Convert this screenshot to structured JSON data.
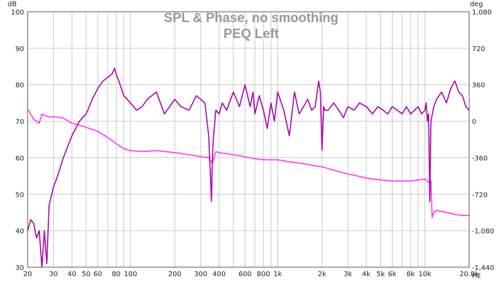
{
  "chart_data": {
    "type": "line",
    "title": "SPL & Phase, no smoothing",
    "subtitle": "PEQ Left",
    "x_scale": "log",
    "xlim": [
      20,
      20000
    ],
    "x_unit": "Hz",
    "ylabel_left": "dB",
    "ylabel_right": "deg",
    "ylim_left": [
      30,
      100
    ],
    "ylim_right": [
      -1440,
      1080
    ],
    "grid": true,
    "x_ticks": [
      {
        "v": 20,
        "label": "20"
      },
      {
        "v": 30,
        "label": "30"
      },
      {
        "v": 40,
        "label": "40"
      },
      {
        "v": 50,
        "label": "50"
      },
      {
        "v": 60,
        "label": "60"
      },
      {
        "v": 80,
        "label": "80"
      },
      {
        "v": 100,
        "label": "100"
      },
      {
        "v": 200,
        "label": "200"
      },
      {
        "v": 300,
        "label": "300"
      },
      {
        "v": 400,
        "label": "400"
      },
      {
        "v": 600,
        "label": "600"
      },
      {
        "v": 800,
        "label": "800"
      },
      {
        "v": 1000,
        "label": "1k"
      },
      {
        "v": 2000,
        "label": "2k"
      },
      {
        "v": 3000,
        "label": "3k"
      },
      {
        "v": 4000,
        "label": "4k"
      },
      {
        "v": 5000,
        "label": "5k"
      },
      {
        "v": 6000,
        "label": "6k"
      },
      {
        "v": 8000,
        "label": "8k"
      },
      {
        "v": 10000,
        "label": "10k"
      },
      {
        "v": 20000,
        "label": "20.0k"
      }
    ],
    "y_left_ticks": [
      "100",
      "90",
      "80",
      "70",
      "60",
      "50",
      "40",
      "30"
    ],
    "y_left_values": [
      100,
      90,
      80,
      70,
      60,
      50,
      40,
      30
    ],
    "y_right_ticks": [
      "1,080",
      "720",
      "360",
      "0",
      "-360",
      "-720",
      "-1,080",
      "-1,440"
    ],
    "y_right_values": [
      1080,
      720,
      360,
      0,
      -360,
      -720,
      -1080,
      -1440
    ],
    "series": [
      {
        "axis": "right",
        "color": "#ff33ff",
        "x": [
          20,
          22,
          24,
          25,
          26,
          28,
          30,
          35,
          40,
          45,
          50,
          60,
          70,
          80,
          90,
          100,
          120,
          150,
          200,
          250,
          300,
          340,
          360,
          380,
          400,
          500,
          600,
          700,
          800,
          1000,
          1200,
          1500,
          1800,
          2000,
          2500,
          3000,
          4000,
          5000,
          6000,
          7000,
          8000,
          9000,
          10000,
          10500,
          11000,
          11200,
          11500,
          12000,
          14000,
          16000,
          18000,
          20000
        ],
        "values": [
          120,
          20,
          -20,
          70,
          60,
          40,
          45,
          30,
          -20,
          -40,
          -60,
          -100,
          -160,
          -220,
          -270,
          -290,
          -300,
          -290,
          -310,
          -330,
          -350,
          -360,
          -420,
          -300,
          -310,
          -330,
          -350,
          -370,
          -380,
          -380,
          -400,
          -420,
          -440,
          -450,
          -490,
          -520,
          -560,
          -580,
          -590,
          -590,
          -590,
          -580,
          -570,
          -600,
          -590,
          -950,
          -900,
          -880,
          -900,
          -920,
          -930,
          -930
        ]
      },
      {
        "axis": "left",
        "color": "#aa00aa",
        "x": [
          20,
          21,
          22,
          23,
          24,
          25,
          26,
          27,
          28,
          30,
          32,
          35,
          40,
          45,
          50,
          55,
          60,
          65,
          70,
          75,
          78,
          80,
          85,
          90,
          100,
          110,
          120,
          130,
          150,
          170,
          200,
          220,
          250,
          280,
          300,
          320,
          340,
          355,
          360,
          365,
          380,
          400,
          420,
          450,
          500,
          550,
          600,
          650,
          680,
          700,
          750,
          800,
          850,
          900,
          950,
          1000,
          1100,
          1200,
          1300,
          1400,
          1500,
          1600,
          1700,
          1800,
          1900,
          1950,
          2000,
          2050,
          2100,
          2200,
          2400,
          2600,
          2800,
          3000,
          3300,
          3600,
          4000,
          4400,
          4800,
          5200,
          5600,
          6000,
          6500,
          7000,
          7500,
          8000,
          8500,
          9000,
          9500,
          10000,
          10200,
          10400,
          10600,
          10800,
          11000,
          11500,
          12000,
          13000,
          14000,
          15000,
          16000,
          17000,
          18000,
          19000,
          20000
        ],
        "values": [
          40,
          43,
          42,
          38,
          40,
          30,
          40,
          31,
          47,
          52,
          55,
          60,
          66,
          70,
          72,
          76,
          79,
          81,
          82,
          83,
          84.5,
          83,
          80,
          77,
          75,
          73,
          74,
          76,
          78,
          72,
          76,
          74,
          73,
          77,
          76,
          75,
          66,
          48,
          60,
          65,
          73,
          72,
          75,
          73,
          78,
          74,
          80,
          74,
          78,
          72,
          77,
          73,
          68,
          75,
          70,
          78,
          73,
          66,
          78,
          72,
          74,
          76,
          73,
          74,
          81,
          78,
          62,
          74,
          73,
          73,
          75,
          73,
          71,
          74,
          73,
          75,
          74,
          72,
          74,
          73,
          72,
          74,
          73,
          72,
          74,
          72,
          73,
          74,
          72,
          73,
          75,
          70,
          72,
          48,
          70,
          74,
          76,
          78,
          75,
          79,
          81,
          78,
          77,
          74,
          73
        ]
      }
    ]
  }
}
